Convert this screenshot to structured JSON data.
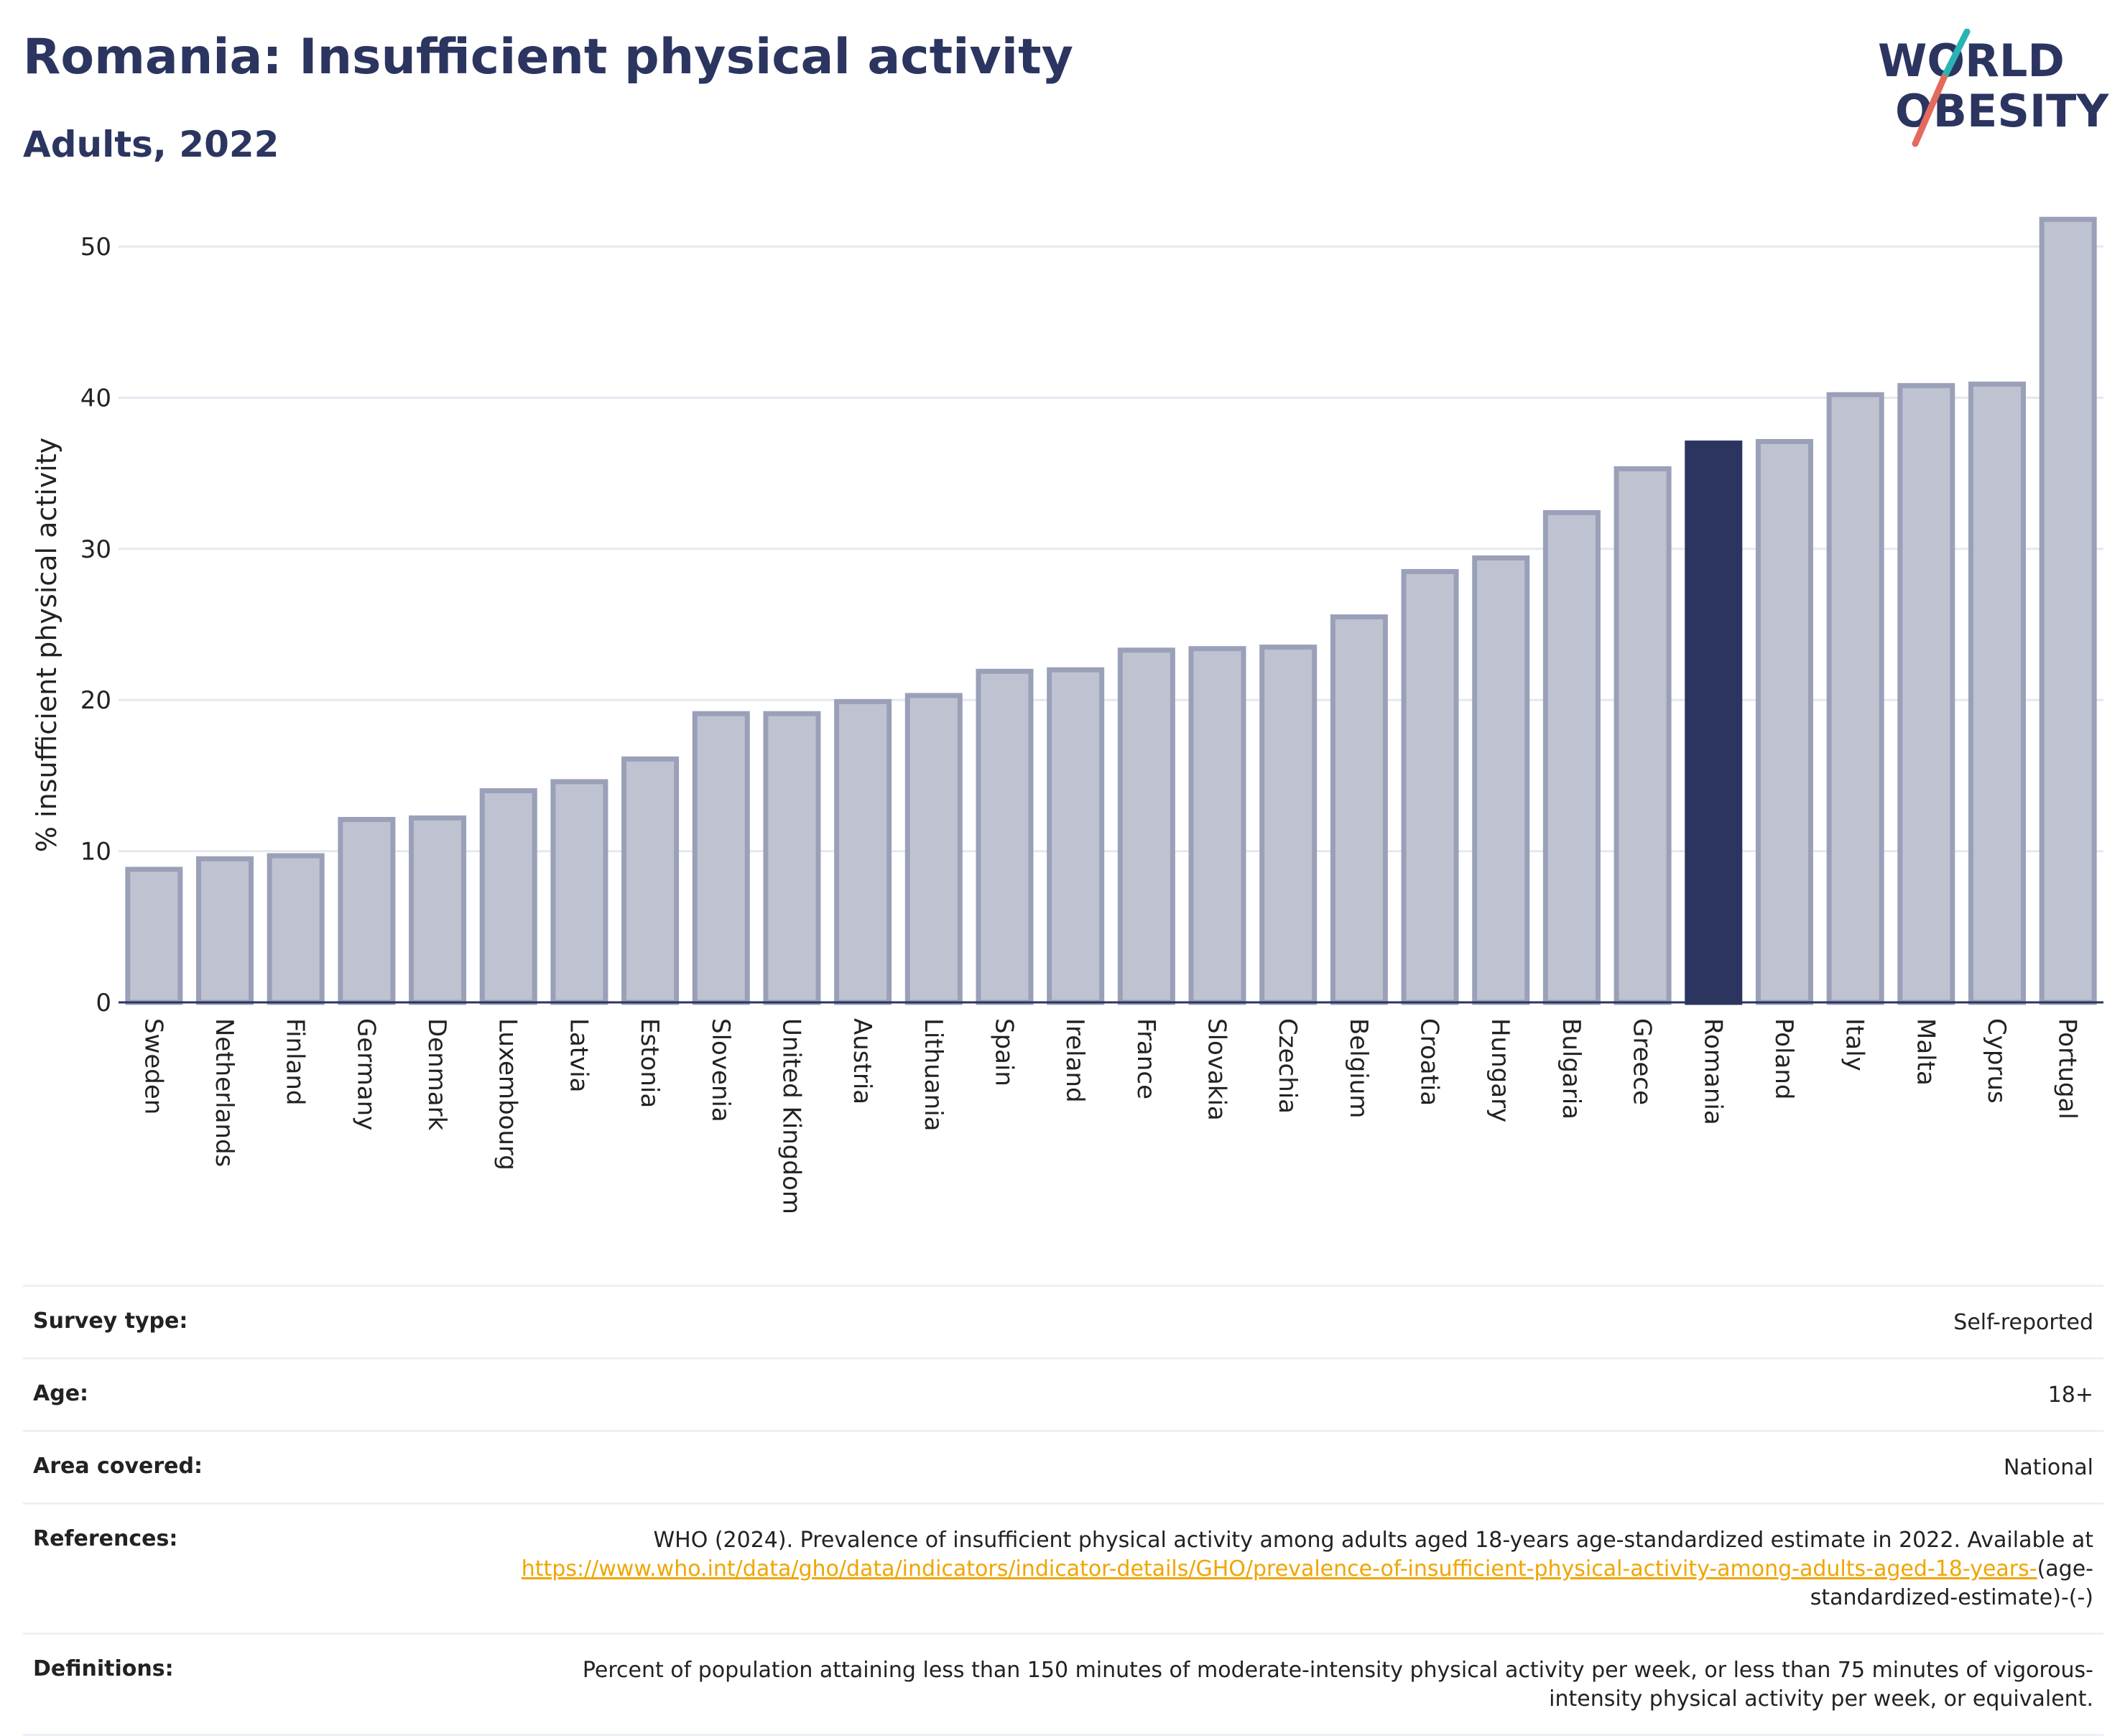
{
  "header": {
    "title": "Romania: Insufficient physical activity",
    "subtitle": "Adults, 2022"
  },
  "logo": {
    "line1": "WORLD",
    "line2": "OBESITY"
  },
  "colors": {
    "highlight": "#2b3560",
    "bar_fill": "#bfc3d1",
    "bar_stroke": "#9aa0b8",
    "grid": "#e6e8f0",
    "link": "#f0a500",
    "logo_teal": "#2ab3b3",
    "logo_red": "#e46a5e"
  },
  "chart_data": {
    "type": "bar",
    "ylabel": "% insufficient physical activity",
    "xlabel": "",
    "ylim": [
      0,
      53
    ],
    "yticks": [
      0,
      10,
      20,
      30,
      40,
      50
    ],
    "grid": true,
    "highlight": "Romania",
    "categories": [
      "Sweden",
      "Netherlands",
      "Finland",
      "Germany",
      "Denmark",
      "Luxembourg",
      "Latvia",
      "Estonia",
      "Slovenia",
      "United Kingdom",
      "Austria",
      "Lithuania",
      "Spain",
      "Ireland",
      "France",
      "Slovakia",
      "Czechia",
      "Belgium",
      "Croatia",
      "Hungary",
      "Bulgaria",
      "Greece",
      "Romania",
      "Poland",
      "Italy",
      "Malta",
      "Cyprus",
      "Portugal"
    ],
    "values": [
      8.8,
      9.5,
      9.7,
      12.1,
      12.2,
      14.0,
      14.6,
      16.1,
      19.1,
      19.1,
      19.9,
      20.3,
      21.9,
      22.0,
      23.3,
      23.4,
      23.5,
      25.5,
      28.5,
      29.4,
      32.4,
      35.3,
      37.0,
      37.1,
      40.2,
      40.8,
      40.9,
      51.8
    ]
  },
  "info": {
    "survey_type": {
      "label": "Survey type:",
      "value": "Self-reported"
    },
    "age": {
      "label": "Age:",
      "value": "18+"
    },
    "area": {
      "label": "Area covered:",
      "value": "National"
    },
    "references": {
      "label": "References:",
      "text": "WHO (2024). Prevalence of insufficient physical activity among adults aged 18-years age-standardized estimate in 2022. Available at",
      "link": "https://www.who.int/data/gho/data/indicators/indicator-details/GHO/prevalence-of-insufficient-physical-activity-among-adults-aged-18-years-",
      "suffix": "(age-standardized-estimate)-(-)"
    },
    "definitions": {
      "label": "Definitions:",
      "value": "Percent of population attaining less than 150 minutes of moderate-intensity physical activity per week, or less than 75 minutes of vigorous-intensity physical activity per week, or equivalent."
    }
  }
}
